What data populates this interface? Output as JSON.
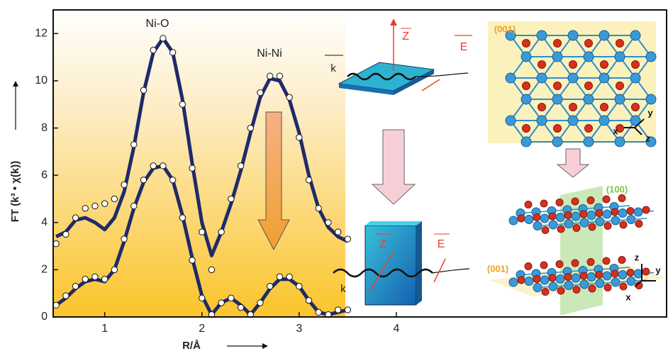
{
  "chart_data": {
    "type": "line",
    "x_label": "R/Å",
    "y_label": "FT (k³ • χ(k))",
    "xlim": [
      0.47,
      6.78
    ],
    "ylim": [
      0,
      13
    ],
    "xticks": [
      1,
      2,
      3,
      4
    ],
    "yticks": [
      0,
      2,
      4,
      6,
      8,
      10,
      12
    ],
    "x": [
      0.5,
      0.6,
      0.7,
      0.8,
      0.9,
      1.0,
      1.1,
      1.2,
      1.3,
      1.4,
      1.5,
      1.6,
      1.7,
      1.8,
      1.9,
      2.0,
      2.1,
      2.2,
      2.3,
      2.4,
      2.5,
      2.6,
      2.7,
      2.8,
      2.9,
      3.0,
      3.1,
      3.2,
      3.3,
      3.4,
      3.5
    ],
    "series": [
      {
        "mode": "line",
        "color": "#1f2a6b",
        "values": [
          3.4,
          3.6,
          4.1,
          4.2,
          4.0,
          3.7,
          4.2,
          5.3,
          7.2,
          9.5,
          11.2,
          11.8,
          11.2,
          9.2,
          6.5,
          4.0,
          2.6,
          3.6,
          4.8,
          6.2,
          7.8,
          9.3,
          10.1,
          10.0,
          9.2,
          7.8,
          6.0,
          4.6,
          3.8,
          3.4,
          3.2
        ]
      },
      {
        "mode": "markers",
        "color": "#ffffff",
        "values": [
          3.1,
          3.5,
          4.2,
          4.6,
          4.7,
          4.8,
          5.0,
          5.6,
          7.3,
          9.6,
          11.3,
          11.8,
          11.2,
          9.0,
          6.3,
          3.6,
          2.0,
          3.6,
          5.0,
          6.4,
          8.0,
          9.5,
          10.2,
          10.2,
          9.3,
          7.6,
          5.8,
          4.6,
          4.0,
          3.6,
          3.3
        ]
      },
      {
        "mode": "line",
        "color": "#1f2a6b",
        "values": [
          0.5,
          0.8,
          1.2,
          1.5,
          1.6,
          1.5,
          2.0,
          3.2,
          4.6,
          5.7,
          6.3,
          6.4,
          5.8,
          4.3,
          2.5,
          0.9,
          0.1,
          0.6,
          0.8,
          0.5,
          0.1,
          0.6,
          1.2,
          1.6,
          1.6,
          1.3,
          0.7,
          0.2,
          0.1,
          0.2,
          0.3
        ]
      },
      {
        "mode": "markers",
        "color": "#ffffff",
        "values": [
          0.5,
          0.9,
          1.3,
          1.6,
          1.7,
          1.6,
          2.0,
          3.3,
          4.7,
          5.8,
          6.4,
          6.4,
          5.8,
          4.2,
          2.4,
          0.8,
          0.1,
          0.6,
          0.8,
          0.4,
          0.1,
          0.6,
          1.3,
          1.7,
          1.7,
          1.3,
          0.7,
          0.2,
          0.1,
          0.3,
          0.3
        ]
      }
    ],
    "annotations": [
      "Ni-O",
      "Ni-Ni",
      "k",
      "Z",
      "E",
      "(001)",
      "x",
      "y",
      "z",
      "Z",
      "E",
      "k",
      "(100)",
      "(001)",
      "z",
      "y",
      "x"
    ]
  }
}
